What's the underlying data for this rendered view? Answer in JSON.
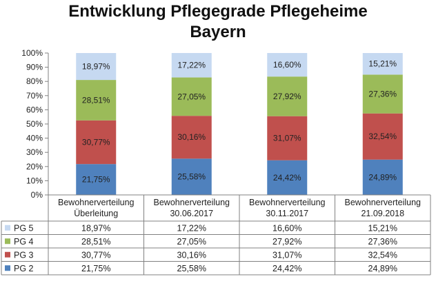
{
  "chart_data": {
    "type": "bar",
    "stacked": true,
    "percent_stacked": true,
    "title_lines": [
      "Entwicklung Pflegegrade Pflegeheime",
      "Bayern"
    ],
    "categories": [
      [
        "Bewohnerverteilung",
        "Überleitung"
      ],
      [
        "Bewohnerverteilung",
        "30.06.2017"
      ],
      [
        "Bewohnerverteilung",
        "30.11.2017"
      ],
      [
        "Bewohnerverteilung",
        "21.09.2018"
      ]
    ],
    "ylim": [
      0,
      100
    ],
    "y_ticks": [
      "0%",
      "10%",
      "20%",
      "30%",
      "40%",
      "50%",
      "60%",
      "70%",
      "80%",
      "90%",
      "100%"
    ],
    "grid": false,
    "legend": "data-table",
    "series": [
      {
        "name": "PG 2",
        "color": "#4f81bd",
        "values": [
          21.75,
          25.58,
          24.42,
          24.89
        ],
        "labels": [
          "21,75%",
          "25,58%",
          "24,42%",
          "24,89%"
        ]
      },
      {
        "name": "PG 3",
        "color": "#c0504d",
        "values": [
          30.77,
          30.16,
          31.07,
          32.54
        ],
        "labels": [
          "30,77%",
          "30,16%",
          "31,07%",
          "32,54%"
        ]
      },
      {
        "name": "PG 4",
        "color": "#9bbb59",
        "values": [
          28.51,
          27.05,
          27.92,
          27.36
        ],
        "labels": [
          "28,51%",
          "27,05%",
          "27,92%",
          "27,36%"
        ]
      },
      {
        "name": "PG 5",
        "color": "#c6d9f1",
        "values": [
          18.97,
          17.22,
          16.6,
          15.21
        ],
        "labels": [
          "18,97%",
          "17,22%",
          "16,60%",
          "15,21%"
        ]
      }
    ],
    "table_row_order": [
      "PG 5",
      "PG 4",
      "PG 3",
      "PG 2"
    ]
  }
}
